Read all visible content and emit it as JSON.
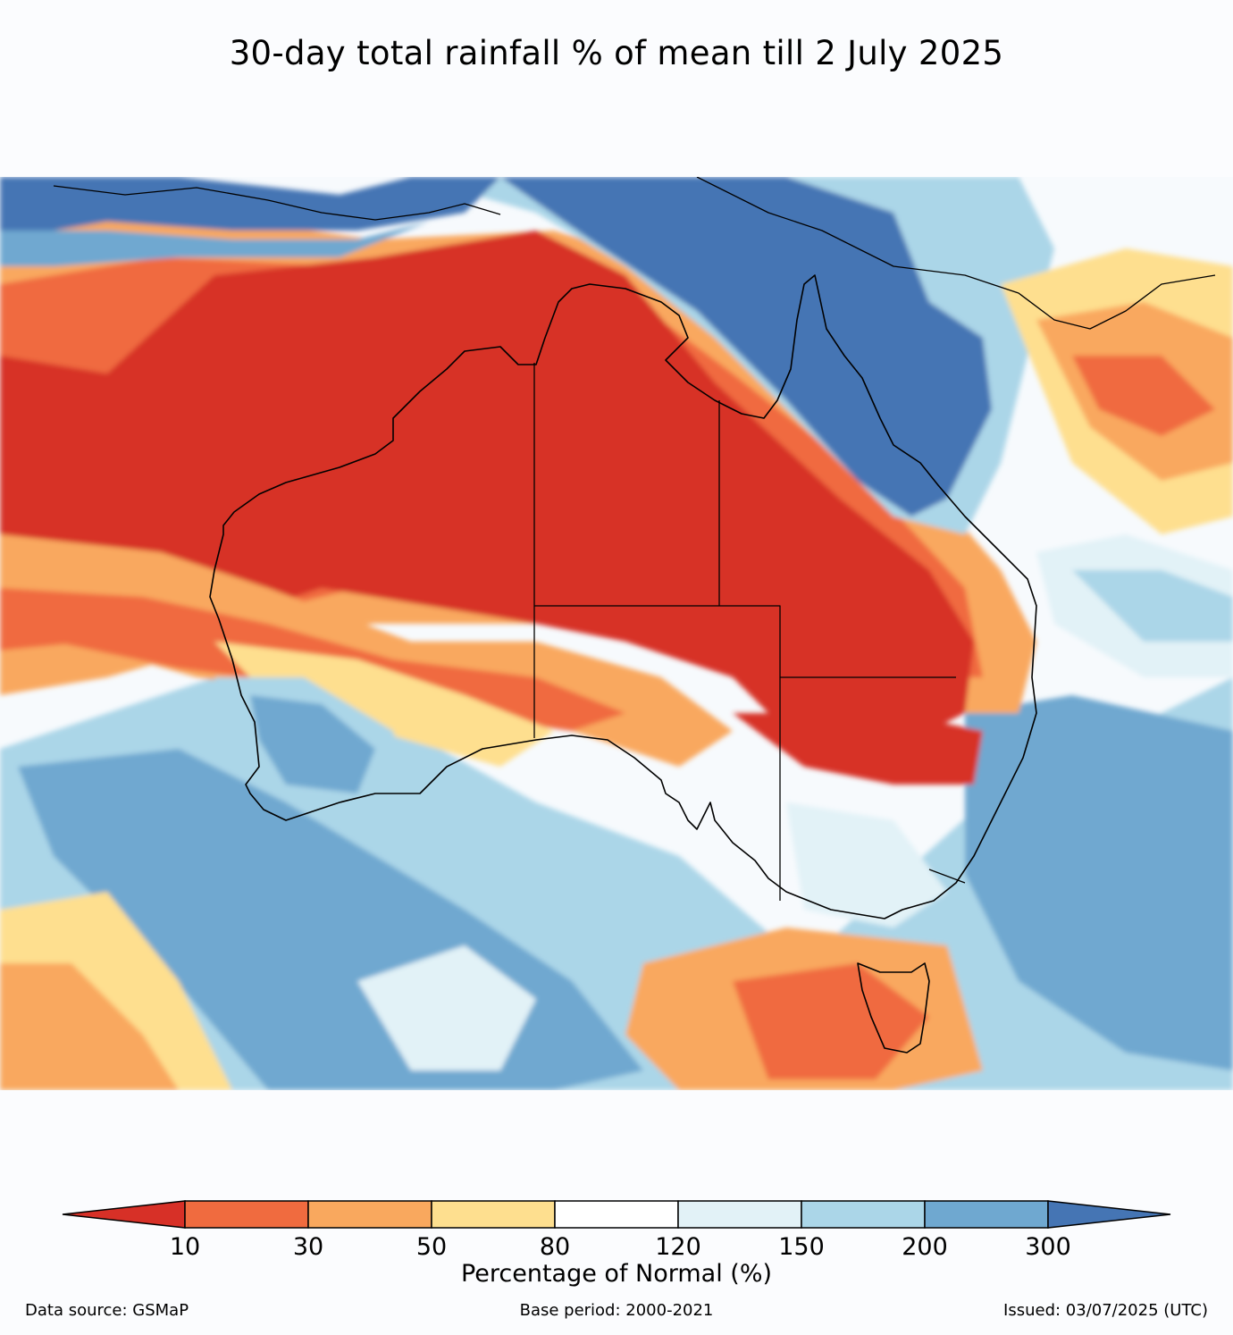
{
  "title": "30-day total rainfall % of mean till 2 July 2025",
  "colorbar": {
    "label": "Percentage of Normal (%)",
    "ticks": [
      "10",
      "30",
      "50",
      "80",
      "120",
      "150",
      "200",
      "300"
    ],
    "colors": [
      "#d73027",
      "#f06b3f",
      "#f9a85e",
      "#fedf8f",
      "#ffffff",
      "#e2f2f7",
      "#abd6e8",
      "#6fa8d0",
      "#4575b4"
    ],
    "extend": "both"
  },
  "footer": {
    "source": "Data source: GSMaP",
    "base": "Base period: 2000-2021",
    "issued": "Issued: 03/07/2025 (UTC)"
  }
}
